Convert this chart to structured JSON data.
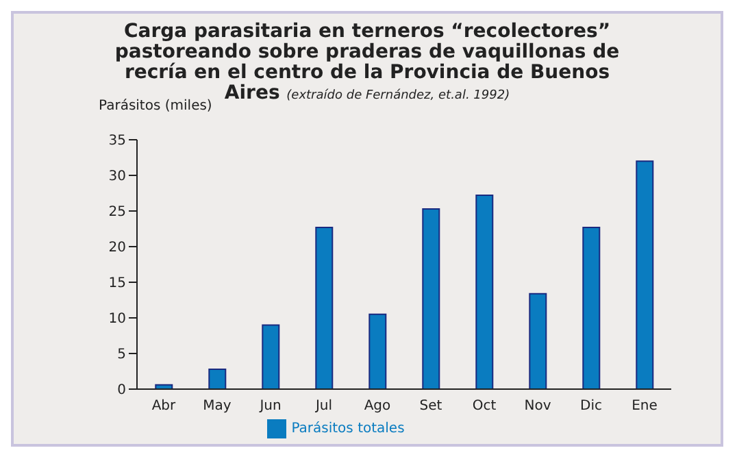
{
  "chart_data": {
    "type": "bar",
    "title": "Carga parasitaria en terneros “recolectores” pastoreando sobre praderas de vaquillonas de recría en el centro de la Provincia de Buenos Aires",
    "subtitle": "(extraído de Fernández, et.al. 1992)",
    "ylabel": "Parásitos (miles)",
    "categories": [
      "Abr",
      "May",
      "Jun",
      "Jul",
      "Ago",
      "Set",
      "Oct",
      "Nov",
      "Dic",
      "Ene"
    ],
    "series": [
      {
        "name": "Parásitos totales",
        "color": "#0a7cc0",
        "values": [
          0.6,
          2.8,
          9,
          22.7,
          10.5,
          25.3,
          27.2,
          13.4,
          22.7,
          32
        ]
      }
    ],
    "ylim": [
      0,
      35
    ],
    "yticks": [
      0,
      5,
      10,
      15,
      20,
      25,
      30,
      35
    ],
    "grid": false,
    "legend": "bottom"
  }
}
